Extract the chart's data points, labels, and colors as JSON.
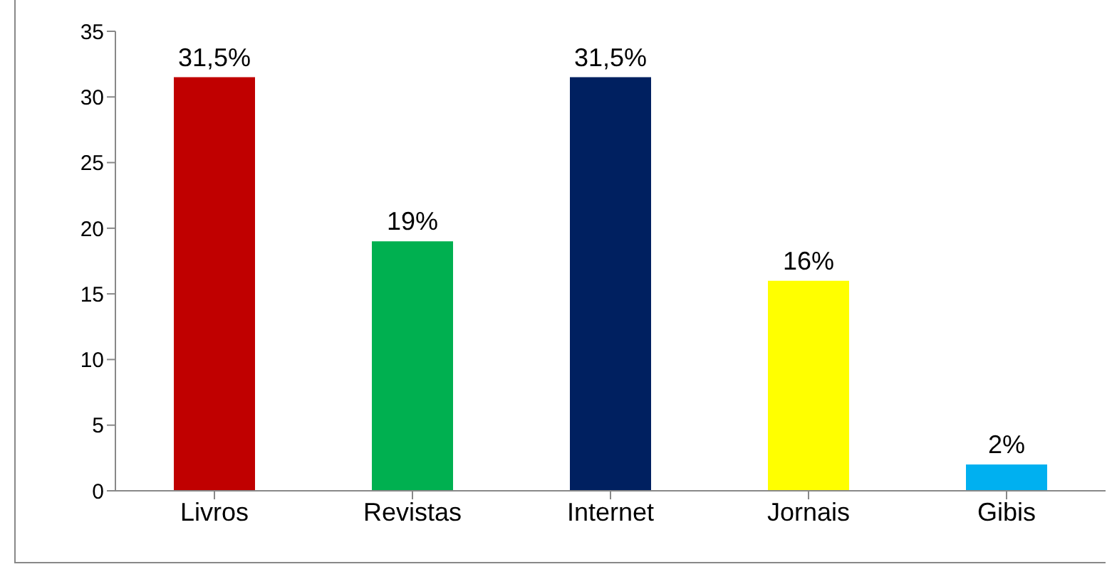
{
  "chart_data": {
    "type": "bar",
    "categories": [
      "Livros",
      "Revistas",
      "Internet",
      "Jornais",
      "Gibis"
    ],
    "values": [
      31.5,
      19,
      31.5,
      16,
      2
    ],
    "colors": [
      "#c00000",
      "#00b050",
      "#002060",
      "#ffff00",
      "#00b0f0"
    ],
    "value_labels": [
      "31,5%",
      "19%",
      "31,5%",
      "16%",
      "2%"
    ],
    "ylim": [
      0,
      35
    ],
    "yticks": [
      0,
      5,
      10,
      15,
      20,
      25,
      30,
      35
    ],
    "grid": false
  }
}
